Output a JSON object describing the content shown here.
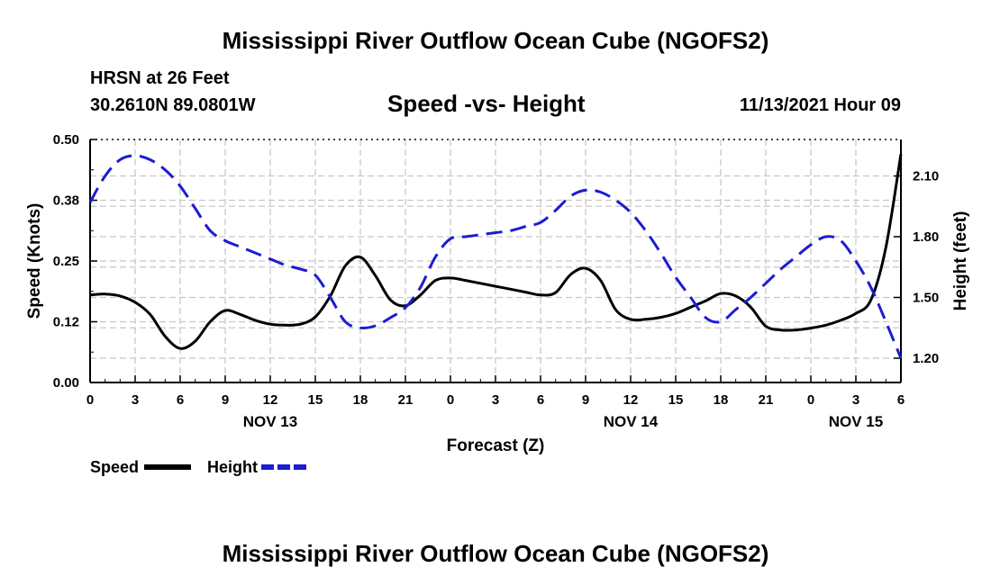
{
  "header": {
    "title": "Mississippi River Outflow Ocean Cube (NGOFS2)",
    "station": "HRSN at 26 Feet",
    "coords": "30.2610N  89.0801W",
    "datetime": "11/13/2021 Hour 09",
    "footer_title": "Mississippi River Outflow Ocean Cube (NGOFS2)"
  },
  "legend": {
    "speed_label": "Speed",
    "height_label": "Height"
  },
  "colors": {
    "speed": "#000000",
    "height": "#1c1cd2",
    "grid": "#c8c8c8"
  },
  "chart_data": {
    "type": "line",
    "title": "Speed -vs- Height",
    "xlabel": "Forecast (Z)",
    "ylabel": "Speed (Knots)",
    "y2label": "Height (feet)",
    "xlim": [
      0,
      54
    ],
    "ylim": [
      0,
      0.5
    ],
    "y2lim": [
      1.08,
      2.28
    ],
    "x_ticks": [
      0,
      3,
      6,
      9,
      12,
      15,
      18,
      21,
      24,
      27,
      30,
      33,
      36,
      39,
      42,
      45,
      48,
      51,
      54
    ],
    "x_tick_labels": [
      "0",
      "3",
      "6",
      "9",
      "12",
      "15",
      "18",
      "21",
      "0",
      "3",
      "6",
      "9",
      "12",
      "15",
      "18",
      "21",
      "0",
      "3",
      "6"
    ],
    "y_ticks": [
      0.0,
      0.125,
      0.25,
      0.375,
      0.5
    ],
    "y_tick_labels": [
      "0.00",
      "0.12",
      "0.25",
      "0.38",
      "0.50"
    ],
    "y2_ticks": [
      1.2,
      1.5,
      1.8,
      2.1
    ],
    "y2_tick_labels": [
      "1.20",
      "1.50",
      "1.80",
      "2.10"
    ],
    "date_labels": [
      {
        "x": 12,
        "label": "NOV 13"
      },
      {
        "x": 36,
        "label": "NOV 14"
      },
      {
        "x": 51,
        "label": "NOV 15"
      }
    ],
    "legend_position": "bottom-left",
    "series": [
      {
        "name": "Speed",
        "axis": "left",
        "style": "solid",
        "x": [
          0,
          1,
          2,
          3,
          4,
          5,
          6,
          7,
          8,
          9,
          10,
          11,
          12,
          13,
          14,
          15,
          16,
          17,
          18,
          19,
          20,
          21,
          22,
          23,
          24,
          25,
          26,
          27,
          28,
          29,
          30,
          31,
          32,
          33,
          34,
          35,
          36,
          37,
          38,
          39,
          40,
          41,
          42,
          43,
          44,
          45,
          46,
          47,
          48,
          49,
          50,
          51,
          52,
          53,
          54
        ],
        "values": [
          0.18,
          0.182,
          0.178,
          0.165,
          0.14,
          0.095,
          0.07,
          0.085,
          0.125,
          0.148,
          0.14,
          0.128,
          0.12,
          0.118,
          0.12,
          0.135,
          0.178,
          0.24,
          0.258,
          0.22,
          0.17,
          0.158,
          0.18,
          0.21,
          0.215,
          0.21,
          0.204,
          0.198,
          0.192,
          0.186,
          0.18,
          0.185,
          0.222,
          0.235,
          0.21,
          0.15,
          0.13,
          0.13,
          0.134,
          0.142,
          0.155,
          0.168,
          0.183,
          0.178,
          0.155,
          0.116,
          0.108,
          0.108,
          0.112,
          0.118,
          0.128,
          0.142,
          0.17,
          0.278,
          0.47
        ]
      },
      {
        "name": "Height",
        "axis": "right",
        "style": "dashed",
        "x": [
          0,
          1,
          2,
          3,
          4,
          5,
          6,
          7,
          8,
          9,
          10,
          11,
          12,
          13,
          14,
          15,
          16,
          17,
          18,
          19,
          20,
          21,
          22,
          23,
          24,
          25,
          26,
          27,
          28,
          29,
          30,
          31,
          32,
          33,
          34,
          35,
          36,
          37,
          38,
          39,
          40,
          41,
          42,
          43,
          44,
          45,
          46,
          47,
          48,
          49,
          50,
          51,
          52,
          53,
          54
        ],
        "values": [
          1.97,
          2.1,
          2.18,
          2.2,
          2.18,
          2.13,
          2.05,
          1.94,
          1.83,
          1.78,
          1.75,
          1.72,
          1.69,
          1.66,
          1.64,
          1.61,
          1.5,
          1.38,
          1.35,
          1.36,
          1.4,
          1.45,
          1.55,
          1.7,
          1.79,
          1.8,
          1.81,
          1.82,
          1.83,
          1.85,
          1.87,
          1.93,
          2.0,
          2.03,
          2.02,
          1.98,
          1.92,
          1.83,
          1.72,
          1.6,
          1.5,
          1.4,
          1.38,
          1.44,
          1.5,
          1.57,
          1.64,
          1.7,
          1.76,
          1.8,
          1.78,
          1.68,
          1.55,
          1.38,
          1.2
        ]
      }
    ]
  }
}
